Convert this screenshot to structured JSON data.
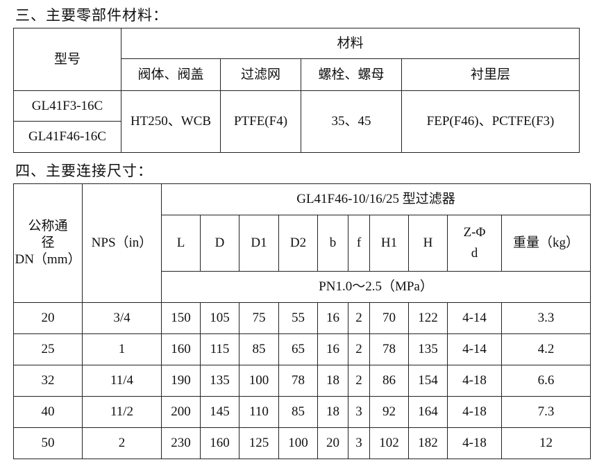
{
  "section3": {
    "title": "三、主要零部件材料：",
    "header": {
      "model": "型号",
      "material": "材料",
      "columns": [
        "阀体、阀盖",
        "过滤网",
        "螺栓、螺母",
        "衬里层"
      ]
    },
    "models": [
      "GL41F3-16C",
      "GL41F46-16C"
    ],
    "values": [
      "HT250、WCB",
      "PTFE(F4)",
      "35、45",
      "FEP(F46)、PCTFE(F3)"
    ]
  },
  "section4": {
    "title": "四、主要连接尺寸：",
    "header": {
      "dn": "公称通径DN（mm）",
      "dn_lines": [
        "公称通",
        "径",
        "DN（mm）"
      ],
      "nps": "NPS（in）",
      "group": "GL41F46-10/16/25 型过滤器",
      "columns": [
        "L",
        "D",
        "D1",
        "D2",
        "b",
        "f",
        "H1",
        "H",
        "Z-Φd",
        "重量（kg）"
      ],
      "zd_lines": [
        "Z-Φ",
        "d"
      ],
      "pressure": "PN1.0～2.5（MPa）"
    },
    "rows": [
      [
        "20",
        "3/4",
        "150",
        "105",
        "75",
        "55",
        "16",
        "2",
        "70",
        "122",
        "4-14",
        "3.3"
      ],
      [
        "25",
        "1",
        "160",
        "115",
        "85",
        "65",
        "16",
        "2",
        "78",
        "135",
        "4-14",
        "4.2"
      ],
      [
        "32",
        "11/4",
        "190",
        "135",
        "100",
        "78",
        "18",
        "2",
        "86",
        "154",
        "4-18",
        "6.6"
      ],
      [
        "40",
        "11/2",
        "200",
        "145",
        "110",
        "85",
        "18",
        "3",
        "92",
        "164",
        "4-18",
        "7.3"
      ],
      [
        "50",
        "2",
        "230",
        "160",
        "125",
        "100",
        "20",
        "3",
        "102",
        "182",
        "4-18",
        "12"
      ]
    ]
  }
}
